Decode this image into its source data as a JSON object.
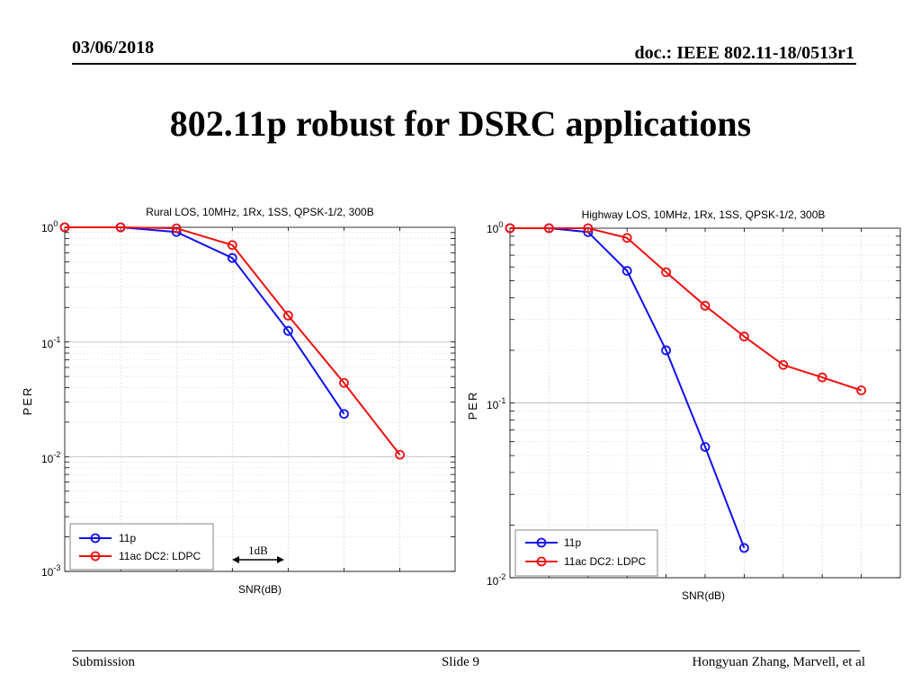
{
  "header": {
    "date": "03/06/2018",
    "doc": "doc.: IEEE 802.11-18/0513r1"
  },
  "slide_title": "802.11p robust for DSRC applications",
  "footer": {
    "left": "Submission",
    "center": "Slide 9",
    "right": "Hongyuan Zhang, Marvell, et al"
  },
  "annotation": {
    "label": "1dB"
  },
  "colors": {
    "series_11p": "#1010ee",
    "series_11ac": "#ee1010"
  },
  "chart_data": [
    {
      "type": "line",
      "title": "Rural LOS, 10MHz, 1Rx, 1SS, QPSK-1/2, 300B",
      "xlabel": "SNR(dB)",
      "ylabel": "PER",
      "yscale": "log",
      "ylim": [
        0.001,
        1
      ],
      "yticks": [
        {
          "base": "10",
          "exp": "0"
        },
        {
          "base": "10",
          "exp": "-1"
        },
        {
          "base": "10",
          "exp": "-2"
        },
        {
          "base": "10",
          "exp": "-3"
        }
      ],
      "series": [
        {
          "name": "11p",
          "color": "#1010ee",
          "x": [
            0,
            1,
            2,
            3,
            4,
            5
          ],
          "y": [
            1.0,
            1.0,
            0.91,
            0.54,
            0.125,
            0.0236
          ]
        },
        {
          "name": "11ac DC2: LDPC",
          "color": "#ee1010",
          "x": [
            0,
            1,
            2,
            3,
            4,
            5,
            6
          ],
          "y": [
            1.0,
            1.0,
            0.98,
            0.7,
            0.17,
            0.044,
            0.0104
          ]
        }
      ],
      "legend": "bottom-left"
    },
    {
      "type": "line",
      "title": "Highway LOS, 10MHz, 1Rx, 1SS, QPSK-1/2, 300B",
      "xlabel": "SNR(dB)",
      "ylabel": "PER",
      "yscale": "log",
      "ylim": [
        0.01,
        1
      ],
      "yticks": [
        {
          "base": "10",
          "exp": "0"
        },
        {
          "base": "10",
          "exp": "-1"
        },
        {
          "base": "10",
          "exp": "-2"
        }
      ],
      "series": [
        {
          "name": "11p",
          "color": "#1010ee",
          "x": [
            0,
            1,
            2,
            3,
            4,
            5,
            6
          ],
          "y": [
            1.0,
            1.0,
            0.95,
            0.57,
            0.2,
            0.056,
            0.0148
          ]
        },
        {
          "name": "11ac DC2: LDPC",
          "color": "#ee1010",
          "x": [
            0,
            1,
            2,
            3,
            4,
            5,
            6,
            7,
            8,
            9
          ],
          "y": [
            1.0,
            1.0,
            1.0,
            0.88,
            0.56,
            0.36,
            0.24,
            0.165,
            0.14,
            0.118
          ]
        }
      ],
      "legend": "bottom-left"
    }
  ]
}
